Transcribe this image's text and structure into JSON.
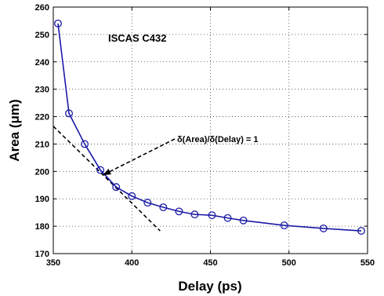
{
  "chart_data": {
    "type": "line",
    "title": "ISCAS C432",
    "xlabel": "Delay (ps)",
    "ylabel": "Area (μm)",
    "xlim": [
      350,
      550
    ],
    "ylim": [
      170,
      260
    ],
    "xticks": [
      350,
      400,
      450,
      500,
      550
    ],
    "yticks": [
      170,
      180,
      190,
      200,
      210,
      220,
      230,
      240,
      250,
      260
    ],
    "grid": true,
    "series": [
      {
        "color": "#1a1aa6",
        "marker": "circle",
        "x": [
          353,
          360,
          370,
          380,
          390,
          400,
          410,
          420,
          430,
          440,
          451,
          461,
          471,
          497,
          522,
          546
        ],
        "y": [
          254,
          221.2,
          210,
          200.5,
          194.3,
          191,
          188.6,
          186.9,
          185.4,
          184.3,
          184,
          183,
          182.1,
          180.3,
          179.2,
          178.3
        ]
      }
    ],
    "tangent_line": {
      "x": [
        350,
        418
      ],
      "y": [
        216.5,
        178.3
      ],
      "style": "dashed"
    },
    "annotation": {
      "text": "δ(Area)/δ(Delay) = 1",
      "points_to": {
        "x": 382,
        "y": 198.8
      }
    }
  }
}
